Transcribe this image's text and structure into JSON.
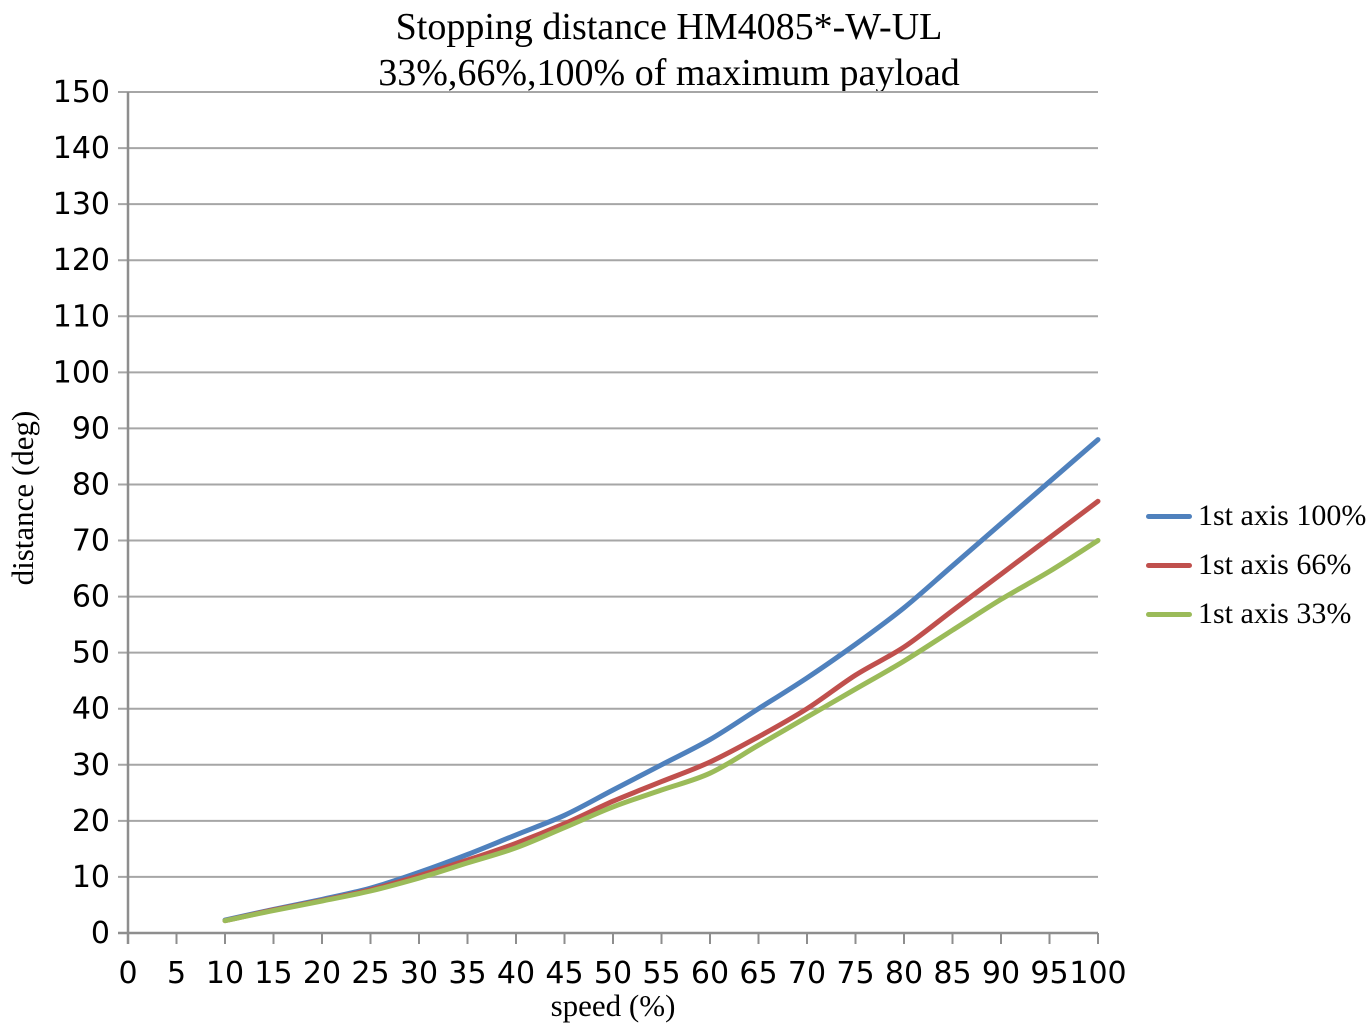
{
  "page": {
    "background": "#ffffff"
  },
  "chart_data": {
    "type": "line",
    "title": "Stopping distance HM4085*-W-UL",
    "subtitle": "33%,66%,100% of maximum payload",
    "xlabel": "speed (%)",
    "ylabel": "distance (deg)",
    "xlim": [
      0,
      100
    ],
    "ylim": [
      0,
      150
    ],
    "x_tick_step": 5,
    "y_tick_step": 10,
    "grid": "horizontal-only",
    "gridline_color": "#A6A6A6",
    "axis_color": "#8E8E8E",
    "legend_position": "right",
    "line_width": 5,
    "x": [
      10,
      15,
      20,
      25,
      30,
      35,
      40,
      45,
      50,
      55,
      60,
      65,
      70,
      75,
      80,
      85,
      90,
      95,
      100
    ],
    "series": [
      {
        "name": "1st axis 100%",
        "color": "#4F81BD",
        "values": [
          2.3,
          4.2,
          6.0,
          8.0,
          10.8,
          14.0,
          17.5,
          21.0,
          25.5,
          30.0,
          34.5,
          40.0,
          45.5,
          51.5,
          58.0,
          65.5,
          73.0,
          80.5,
          88.0
        ]
      },
      {
        "name": "1st axis 66%",
        "color": "#C0504D",
        "values": [
          2.2,
          4.1,
          5.8,
          7.7,
          10.2,
          13.0,
          16.0,
          19.5,
          23.5,
          27.0,
          30.5,
          35.0,
          40.0,
          46.0,
          51.0,
          57.5,
          64.0,
          70.5,
          77.0
        ]
      },
      {
        "name": "1st axis 33%",
        "color": "#9BBB59",
        "values": [
          2.2,
          4.0,
          5.7,
          7.5,
          9.8,
          12.5,
          15.2,
          18.8,
          22.5,
          25.5,
          28.5,
          33.5,
          38.5,
          43.5,
          48.5,
          54.0,
          59.5,
          64.5,
          70.0
        ]
      }
    ]
  }
}
